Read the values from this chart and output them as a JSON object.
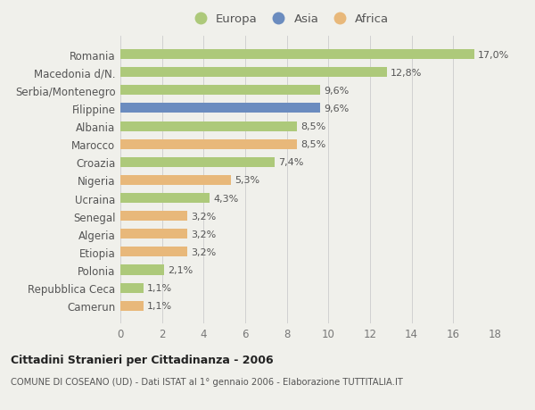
{
  "categories": [
    "Camerun",
    "Repubblica Ceca",
    "Polonia",
    "Etiopia",
    "Algeria",
    "Senegal",
    "Ucraina",
    "Nigeria",
    "Croazia",
    "Marocco",
    "Albania",
    "Filippine",
    "Serbia/Montenegro",
    "Macedonia d/N.",
    "Romania"
  ],
  "values": [
    1.1,
    1.1,
    2.1,
    3.2,
    3.2,
    3.2,
    4.3,
    5.3,
    7.4,
    8.5,
    8.5,
    9.6,
    9.6,
    12.8,
    17.0
  ],
  "labels": [
    "1,1%",
    "1,1%",
    "2,1%",
    "3,2%",
    "3,2%",
    "3,2%",
    "4,3%",
    "5,3%",
    "7,4%",
    "8,5%",
    "8,5%",
    "9,6%",
    "9,6%",
    "12,8%",
    "17,0%"
  ],
  "continents": [
    "Africa",
    "Europa",
    "Europa",
    "Africa",
    "Africa",
    "Africa",
    "Europa",
    "Africa",
    "Europa",
    "Africa",
    "Europa",
    "Asia",
    "Europa",
    "Europa",
    "Europa"
  ],
  "colors": {
    "Europa": "#adc97a",
    "Asia": "#6b8cbf",
    "Africa": "#e8b87a"
  },
  "legend_items": [
    "Europa",
    "Asia",
    "Africa"
  ],
  "xlim": [
    0,
    18
  ],
  "xticks": [
    0,
    2,
    4,
    6,
    8,
    10,
    12,
    14,
    16,
    18
  ],
  "title": "Cittadini Stranieri per Cittadinanza - 2006",
  "subtitle": "COMUNE DI COSEANO (UD) - Dati ISTAT al 1° gennaio 2006 - Elaborazione TUTTITALIA.IT",
  "bg_color": "#f0f0eb",
  "bar_height": 0.55,
  "label_fontsize": 8.0,
  "tick_fontsize": 8.5,
  "ylabel_fontsize": 8.5
}
